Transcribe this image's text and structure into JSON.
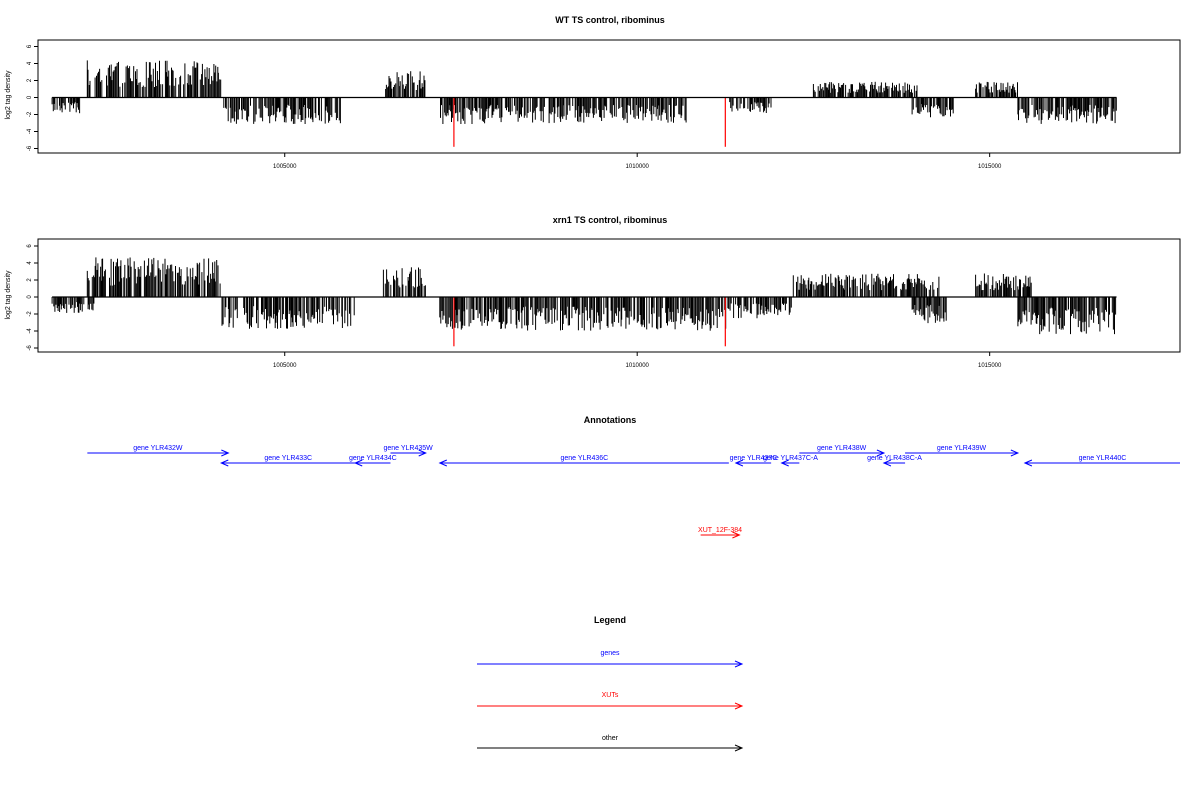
{
  "chart_data": [
    {
      "type": "bar",
      "title": "WT TS control, ribominus",
      "ylabel": "log2 tag density",
      "xlim": [
        1001500,
        1017700
      ],
      "ylim": [
        -6,
        7
      ],
      "yticks": [
        6,
        4,
        2,
        0,
        -2,
        -4,
        -6
      ],
      "xticks": [
        1005000,
        1010000,
        1015000
      ],
      "xtick_labels": [
        "1005000",
        "1010000",
        "1015000"
      ],
      "series": [
        {
          "color": "#000000",
          "region_profile": [
            [
              1001700,
              1002100,
              -1.5
            ],
            [
              1002200,
              1004100,
              3.5
            ],
            [
              1004100,
              1005800,
              -2.5
            ],
            [
              1006400,
              1007000,
              2.5
            ],
            [
              1007200,
              1010700,
              -2.5
            ],
            [
              1011300,
              1011900,
              -1.5
            ],
            [
              1012500,
              1014000,
              1.5
            ],
            [
              1013900,
              1014500,
              -2
            ],
            [
              1014800,
              1015400,
              1.5
            ],
            [
              1015400,
              1016800,
              -2.5
            ]
          ]
        },
        {
          "color": "#ff0000",
          "x": [
            1007400,
            1011250
          ],
          "values": [
            -5.8,
            -5.8
          ]
        }
      ]
    },
    {
      "type": "bar",
      "title": "xrn1 TS control, ribominus",
      "ylabel": "log2 tag density",
      "xlim": [
        1001500,
        1017700
      ],
      "ylim": [
        -6,
        7
      ],
      "yticks": [
        6,
        4,
        2,
        0,
        -2,
        -4,
        -6
      ],
      "xticks": [
        1005000,
        1010000,
        1015000
      ],
      "xtick_labels": [
        "1005000",
        "1010000",
        "1015000"
      ],
      "series": [
        {
          "color": "#000000",
          "region_profile": [
            [
              1001700,
              1002300,
              -1.5
            ],
            [
              1002200,
              1004100,
              3.8
            ],
            [
              1004100,
              1006000,
              -3
            ],
            [
              1006400,
              1007000,
              2.8
            ],
            [
              1007200,
              1011300,
              -3.2
            ],
            [
              1011300,
              1012200,
              -2
            ],
            [
              1012200,
              1014300,
              2.2
            ],
            [
              1013900,
              1014400,
              -2.5
            ],
            [
              1014800,
              1015600,
              2.3
            ],
            [
              1015400,
              1016800,
              -3.5
            ]
          ]
        },
        {
          "color": "#ff0000",
          "x": [
            1007400,
            1011250
          ],
          "values": [
            -5.8,
            -5.8
          ]
        }
      ]
    }
  ],
  "annotations": {
    "title": "Annotations",
    "features": [
      {
        "label": "gene YLR432W",
        "start": 1002200,
        "end": 1004200,
        "strand": "+",
        "track": 0,
        "type": "gene"
      },
      {
        "label": "gene YLR433C",
        "start": 1004100,
        "end": 1006000,
        "strand": "-",
        "track": 1,
        "type": "gene"
      },
      {
        "label": "gene YLR434C",
        "start": 1006000,
        "end": 1006500,
        "strand": "-",
        "track": 1,
        "type": "gene"
      },
      {
        "label": "gene YLR435W",
        "start": 1006500,
        "end": 1007000,
        "strand": "+",
        "track": 0,
        "type": "gene"
      },
      {
        "label": "gene YLR436C",
        "start": 1007200,
        "end": 1011300,
        "strand": "-",
        "track": 1,
        "type": "gene"
      },
      {
        "label": "gene YLR437C",
        "start": 1011400,
        "end": 1011900,
        "strand": "-",
        "track": 1,
        "type": "gene"
      },
      {
        "label": "gene YLR437C-A",
        "start": 1012050,
        "end": 1012300,
        "strand": "-",
        "track": 1,
        "type": "gene"
      },
      {
        "label": "gene YLR438W",
        "start": 1012300,
        "end": 1013500,
        "strand": "+",
        "track": 0,
        "type": "gene"
      },
      {
        "label": "gene YLR438C-A",
        "start": 1013500,
        "end": 1013800,
        "strand": "-",
        "track": 1,
        "type": "gene"
      },
      {
        "label": "gene YLR439W",
        "start": 1013800,
        "end": 1015400,
        "strand": "+",
        "track": 0,
        "type": "gene"
      },
      {
        "label": "gene YLR440C",
        "start": 1015500,
        "end": 1017700,
        "strand": "-",
        "track": 1,
        "type": "gene"
      },
      {
        "label": "XUT_12F-384",
        "start": 1010900,
        "end": 1011450,
        "strand": "+",
        "track": 2,
        "type": "xut"
      }
    ]
  },
  "legend": {
    "title": "Legend",
    "items": [
      {
        "label": "genes",
        "color": "#0000ff"
      },
      {
        "label": "XUTs",
        "color": "#ff0000"
      },
      {
        "label": "other",
        "color": "#000000"
      }
    ]
  },
  "colors": {
    "gene": "#0000ff",
    "xut": "#ff0000",
    "other": "#000000"
  }
}
